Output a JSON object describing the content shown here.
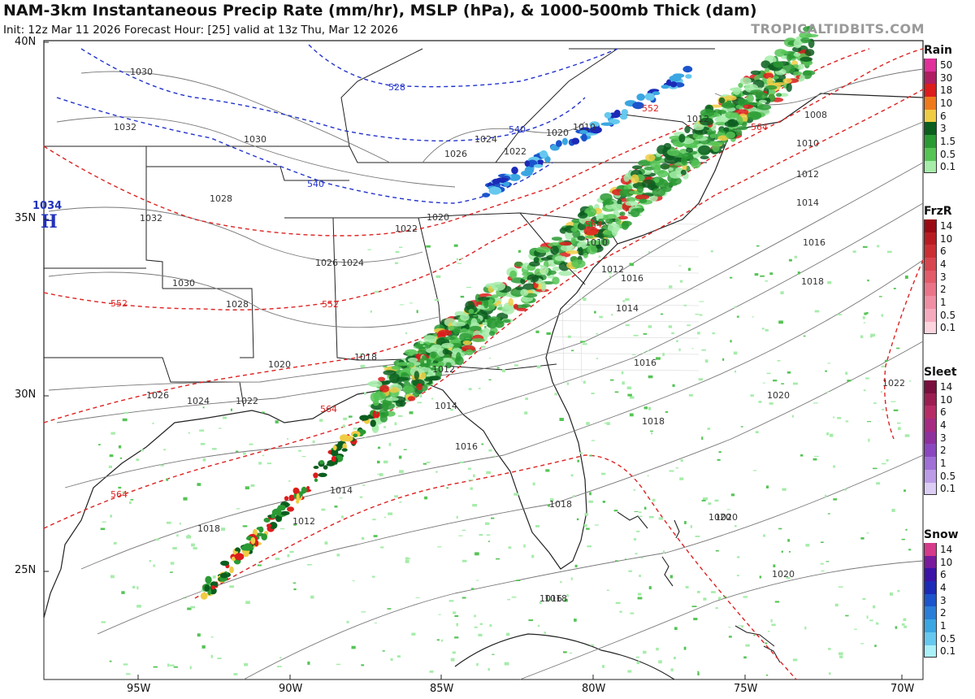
{
  "header": {
    "title": "NAM-3km Instantaneous Precip Rate (mm/hr), MSLP (hPa), & 1000-500mb Thick (dam)",
    "subtitle": "Init: 12z Mar 11 2026   Forecast Hour: [25]   valid at 13z Thu, Mar 12 2026",
    "brand": "TROPICALTIDBITS.COM"
  },
  "axes": {
    "lat_labels": [
      "40N",
      "35N",
      "30N",
      "25N"
    ],
    "lon_labels": [
      "95W",
      "90W",
      "85W",
      "80W",
      "75W",
      "70W"
    ]
  },
  "pressure_center": {
    "value": "1034",
    "symbol": "H",
    "color": "#2233bb"
  },
  "legends": [
    {
      "title": "Rain",
      "values": [
        "50",
        "30",
        "18",
        "10",
        "6",
        "3",
        "1.5",
        "0.5",
        "0.1"
      ],
      "colors": [
        "#e0309a",
        "#b01e62",
        "#dd1c1c",
        "#ee7a1c",
        "#f0cc44",
        "#0b5e1e",
        "#2a9a34",
        "#55c455",
        "#a6ecaa"
      ]
    },
    {
      "title": "FrzR",
      "values": [
        "14",
        "10",
        "6",
        "4",
        "3",
        "2",
        "1",
        "0.5",
        "0.1"
      ],
      "colors": [
        "#9a0a14",
        "#b81c22",
        "#cc2f33",
        "#d84650",
        "#e25c6a",
        "#ea7488",
        "#f08ea4",
        "#f5abbd",
        "#fbd4de"
      ]
    },
    {
      "title": "Sleet",
      "values": [
        "14",
        "10",
        "6",
        "4",
        "3",
        "2",
        "1",
        "0.5",
        "0.1"
      ],
      "colors": [
        "#7a0f3e",
        "#9c1e50",
        "#b82c66",
        "#a62a82",
        "#8f309f",
        "#8b47c0",
        "#a070d6",
        "#bc9ce6",
        "#dccdf4"
      ]
    },
    {
      "title": "Snow",
      "values": [
        "14",
        "10",
        "6",
        "4",
        "3",
        "2",
        "1",
        "0.5",
        "0.1"
      ],
      "colors": [
        "#d63a8a",
        "#7a1a9c",
        "#3b13a6",
        "#1c2ab8",
        "#1b54cc",
        "#2a7ed8",
        "#3aa6e2",
        "#66c8ee",
        "#aaf0f8"
      ]
    }
  ],
  "isobar_labels": [
    "1030",
    "1032",
    "1030",
    "1028",
    "1032",
    "1030",
    "1026",
    "1024",
    "1028",
    "1020",
    "1018",
    "1026",
    "1024",
    "1022",
    "1020",
    "1022",
    "1026",
    "1024",
    "1022",
    "1020",
    "1014",
    "1012",
    "1014",
    "1016",
    "1018",
    "1020",
    "1018",
    "1016",
    "1014",
    "1012",
    "1010",
    "1008",
    "1010",
    "1012",
    "1014",
    "1016",
    "1018",
    "1016",
    "1018",
    "1020",
    "1022",
    "1020",
    "1018",
    "1020",
    "1016",
    "1012",
    "1010",
    "1012"
  ],
  "thickness_labels": [
    "528",
    "540",
    "540",
    "552",
    "564",
    "552",
    "552",
    "564",
    "564",
    "564"
  ],
  "colors": {
    "isobar": "#666666",
    "thickness_low": "#2233cc",
    "thickness_high": "#dd2222",
    "border": "#222222"
  }
}
